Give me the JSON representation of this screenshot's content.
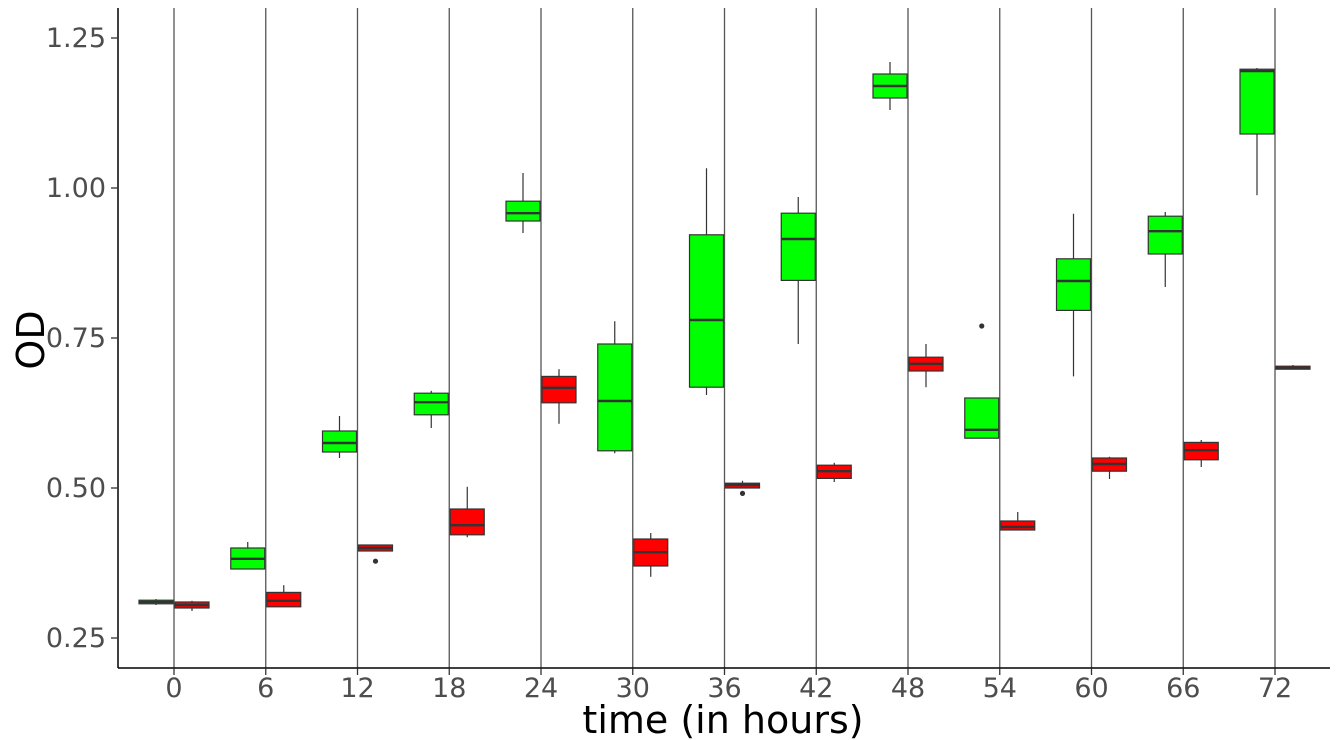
{
  "chart_data": {
    "type": "box",
    "xlabel": "time (in hours)",
    "ylabel": "OD",
    "ylim": [
      0.2,
      1.255
    ],
    "y_ticks": [
      "0.25",
      "0.50",
      "0.75",
      "1.00",
      "1.25"
    ],
    "y_tick_values": [
      0.25,
      0.5,
      0.75,
      1.0,
      1.25
    ],
    "categories": [
      "0",
      "6",
      "12",
      "18",
      "24",
      "30",
      "36",
      "42",
      "48",
      "54",
      "60",
      "66",
      "72"
    ],
    "grid": "vertical lines at each time",
    "legend": "none",
    "series": [
      {
        "color": "#00ff00",
        "boxes": [
          {
            "whisker_low": 0.305,
            "q1": 0.307,
            "median": 0.31,
            "q3": 0.313,
            "whisker_high": 0.315,
            "outliers": []
          },
          {
            "whisker_low": 0.365,
            "q1": 0.365,
            "median": 0.382,
            "q3": 0.4,
            "whisker_high": 0.41,
            "outliers": []
          },
          {
            "whisker_low": 0.55,
            "q1": 0.56,
            "median": 0.575,
            "q3": 0.595,
            "whisker_high": 0.62,
            "outliers": []
          },
          {
            "whisker_low": 0.6,
            "q1": 0.622,
            "median": 0.643,
            "q3": 0.658,
            "whisker_high": 0.662,
            "outliers": []
          },
          {
            "whisker_low": 0.925,
            "q1": 0.945,
            "median": 0.958,
            "q3": 0.978,
            "whisker_high": 1.025,
            "outliers": []
          },
          {
            "whisker_low": 0.558,
            "q1": 0.562,
            "median": 0.645,
            "q3": 0.74,
            "whisker_high": 0.778,
            "outliers": []
          },
          {
            "whisker_low": 0.655,
            "q1": 0.668,
            "median": 0.78,
            "q3": 0.922,
            "whisker_high": 1.033,
            "outliers": []
          },
          {
            "whisker_low": 0.74,
            "q1": 0.846,
            "median": 0.915,
            "q3": 0.958,
            "whisker_high": 0.985,
            "outliers": []
          },
          {
            "whisker_low": 1.13,
            "q1": 1.15,
            "median": 1.17,
            "q3": 1.19,
            "whisker_high": 1.21,
            "outliers": []
          },
          {
            "whisker_low": 0.583,
            "q1": 0.583,
            "median": 0.597,
            "q3": 0.65,
            "whisker_high": 0.65,
            "outliers": [
              0.77
            ]
          },
          {
            "whisker_low": 0.686,
            "q1": 0.796,
            "median": 0.845,
            "q3": 0.882,
            "whisker_high": 0.957,
            "outliers": []
          },
          {
            "whisker_low": 0.835,
            "q1": 0.89,
            "median": 0.928,
            "q3": 0.953,
            "whisker_high": 0.96,
            "outliers": []
          },
          {
            "whisker_low": 0.988,
            "q1": 1.09,
            "median": 1.195,
            "q3": 1.198,
            "whisker_high": 1.2,
            "outliers": []
          }
        ]
      },
      {
        "color": "#ff0000",
        "boxes": [
          {
            "whisker_low": 0.295,
            "q1": 0.3,
            "median": 0.305,
            "q3": 0.31,
            "whisker_high": 0.312,
            "outliers": []
          },
          {
            "whisker_low": 0.302,
            "q1": 0.302,
            "median": 0.312,
            "q3": 0.326,
            "whisker_high": 0.338,
            "outliers": []
          },
          {
            "whisker_low": 0.395,
            "q1": 0.395,
            "median": 0.4,
            "q3": 0.405,
            "whisker_high": 0.405,
            "outliers": [
              0.378
            ]
          },
          {
            "whisker_low": 0.418,
            "q1": 0.422,
            "median": 0.438,
            "q3": 0.465,
            "whisker_high": 0.502,
            "outliers": []
          },
          {
            "whisker_low": 0.607,
            "q1": 0.642,
            "median": 0.667,
            "q3": 0.686,
            "whisker_high": 0.698,
            "outliers": []
          },
          {
            "whisker_low": 0.352,
            "q1": 0.37,
            "median": 0.393,
            "q3": 0.415,
            "whisker_high": 0.425,
            "outliers": []
          },
          {
            "whisker_low": 0.5,
            "q1": 0.5,
            "median": 0.505,
            "q3": 0.508,
            "whisker_high": 0.512,
            "outliers": [
              0.491
            ]
          },
          {
            "whisker_low": 0.51,
            "q1": 0.516,
            "median": 0.528,
            "q3": 0.538,
            "whisker_high": 0.542,
            "outliers": []
          },
          {
            "whisker_low": 0.668,
            "q1": 0.695,
            "median": 0.707,
            "q3": 0.718,
            "whisker_high": 0.74,
            "outliers": []
          },
          {
            "whisker_low": 0.43,
            "q1": 0.43,
            "median": 0.435,
            "q3": 0.445,
            "whisker_high": 0.46,
            "outliers": []
          },
          {
            "whisker_low": 0.515,
            "q1": 0.528,
            "median": 0.54,
            "q3": 0.55,
            "whisker_high": 0.552,
            "outliers": []
          },
          {
            "whisker_low": 0.535,
            "q1": 0.547,
            "median": 0.563,
            "q3": 0.576,
            "whisker_high": 0.58,
            "outliers": []
          },
          {
            "whisker_low": 0.698,
            "q1": 0.698,
            "median": 0.7,
            "q3": 0.703,
            "whisker_high": 0.705,
            "outliers": []
          }
        ]
      }
    ]
  }
}
